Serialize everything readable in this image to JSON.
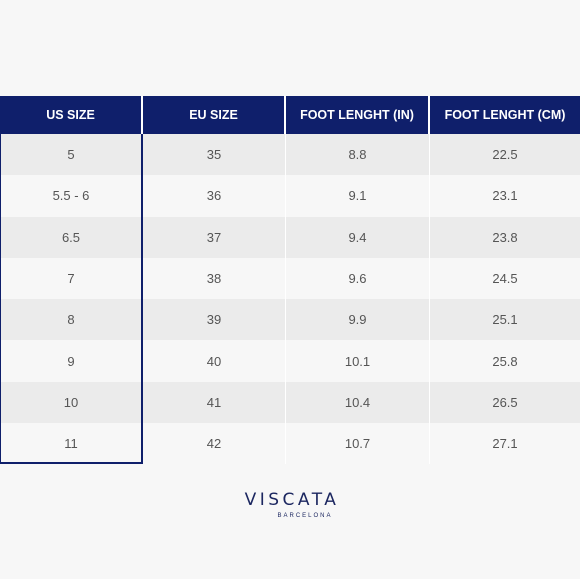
{
  "headers": [
    "US SIZE",
    "EU SIZE",
    "FOOT LENGHT (IN)",
    "FOOT LENGHT (CM)"
  ],
  "rows": [
    [
      "5",
      "35",
      "8.8",
      "22.5"
    ],
    [
      "5.5 - 6",
      "36",
      "9.1",
      "23.1"
    ],
    [
      "6.5",
      "37",
      "9.4",
      "23.8"
    ],
    [
      "7",
      "38",
      "9.6",
      "24.5"
    ],
    [
      "8",
      "39",
      "9.9",
      "25.1"
    ],
    [
      "9",
      "40",
      "10.1",
      "25.8"
    ],
    [
      "10",
      "41",
      "10.4",
      "26.5"
    ],
    [
      "11",
      "42",
      "10.7",
      "27.1"
    ]
  ],
  "brand": {
    "name": "VISCATA",
    "location": "BARCELONA"
  },
  "colors": {
    "header_bg": "#0f1f6b",
    "shade_row": "#ebebeb",
    "background": "#f7f7f7"
  }
}
